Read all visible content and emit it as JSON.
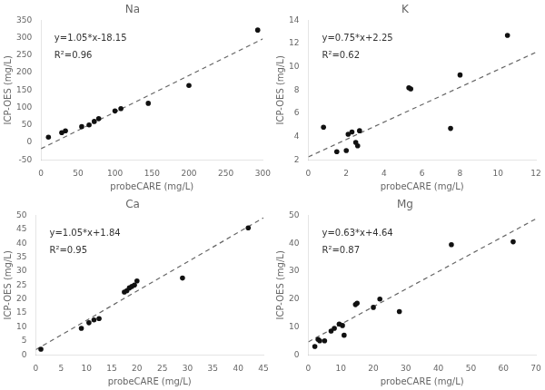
{
  "chart_data": [
    {
      "type": "scatter",
      "title": "Na",
      "xlabel": "probeCARE (mg/L)",
      "ylabel": "ICP-OES (mg/L)",
      "xlim": [
        0,
        300
      ],
      "ylim": [
        -50,
        350
      ],
      "xticks": [
        0,
        50,
        100,
        150,
        200,
        250,
        300
      ],
      "yticks": [
        -50,
        0,
        50,
        100,
        150,
        200,
        250,
        300,
        350
      ],
      "grid": false,
      "annotations": [
        "y=1.05*x-18.15",
        "R²=0.96"
      ],
      "series": [
        {
          "type": "scatter",
          "color": "#111111",
          "marker": "circle",
          "x": [
            10,
            28,
            33,
            55,
            65,
            72,
            78,
            100,
            108,
            145,
            200,
            293
          ],
          "values": [
            15,
            28,
            33,
            45,
            50,
            60,
            68,
            90,
            97,
            112,
            163,
            322
          ]
        },
        {
          "type": "line",
          "color": "#666666",
          "line_style": "dashed",
          "x": [
            0,
            300
          ],
          "values": [
            -18.15,
            296.85
          ]
        }
      ]
    },
    {
      "type": "scatter",
      "title": "K",
      "xlabel": "probeCARE (mg/L)",
      "ylabel": "ICP-OES (mg/L)",
      "xlim": [
        0,
        12
      ],
      "ylim": [
        2,
        14
      ],
      "xticks": [
        0,
        2,
        4,
        6,
        8,
        10,
        12
      ],
      "yticks": [
        2,
        4,
        6,
        8,
        10,
        12,
        14
      ],
      "grid": false,
      "annotations": [
        "y=0.75*x+2.25",
        "R²=0.62"
      ],
      "series": [
        {
          "type": "scatter",
          "color": "#111111",
          "marker": "circle",
          "x": [
            0.8,
            1.5,
            2.0,
            2.1,
            2.3,
            2.5,
            2.6,
            2.7,
            5.3,
            5.4,
            7.5,
            8.0,
            10.5
          ],
          "values": [
            4.8,
            2.7,
            2.8,
            4.2,
            4.4,
            3.5,
            3.2,
            4.5,
            8.2,
            8.1,
            4.7,
            9.3,
            12.7
          ]
        },
        {
          "type": "line",
          "color": "#666666",
          "line_style": "dashed",
          "x": [
            0,
            12
          ],
          "values": [
            2.25,
            11.25
          ]
        }
      ]
    },
    {
      "type": "scatter",
      "title": "Ca",
      "xlabel": "probeCARE (mg/L)",
      "ylabel": "ICP-OES (mg/L)",
      "xlim": [
        0,
        45
      ],
      "ylim": [
        0,
        50
      ],
      "xticks": [
        0,
        5,
        10,
        15,
        20,
        25,
        30,
        35,
        40,
        45
      ],
      "yticks": [
        0,
        5,
        10,
        15,
        20,
        25,
        30,
        35,
        40,
        45,
        50
      ],
      "grid": false,
      "annotations": [
        "y=1.05*x+1.84",
        "R²=0.95"
      ],
      "series": [
        {
          "type": "scatter",
          "color": "#111111",
          "marker": "circle",
          "x": [
            1.0,
            9.0,
            10.5,
            11.5,
            12.5,
            17.5,
            18.0,
            18.5,
            19.0,
            19.5,
            20.0,
            29.0,
            42.0
          ],
          "values": [
            2.0,
            9.5,
            11.5,
            12.5,
            13.0,
            22.5,
            23.0,
            24.0,
            24.5,
            25.0,
            26.5,
            27.5,
            45.5
          ]
        },
        {
          "type": "line",
          "color": "#666666",
          "line_style": "dashed",
          "x": [
            0,
            45
          ],
          "values": [
            1.84,
            49.09
          ]
        }
      ]
    },
    {
      "type": "scatter",
      "title": "Mg",
      "xlabel": "probeCARE (mg/L)",
      "ylabel": "ICP-OES (mg/L)",
      "xlim": [
        0,
        70
      ],
      "ylim": [
        0,
        50
      ],
      "xticks": [
        0,
        10,
        20,
        30,
        40,
        50,
        60,
        70
      ],
      "yticks": [
        0,
        10,
        20,
        30,
        40,
        50
      ],
      "grid": false,
      "annotations": [
        "y=0.63*x+4.64",
        "R²=0.87"
      ],
      "series": [
        {
          "type": "scatter",
          "color": "#111111",
          "marker": "circle",
          "x": [
            2.0,
            3.0,
            3.5,
            5.0,
            7.0,
            8.0,
            9.5,
            10.5,
            11.0,
            14.5,
            15.0,
            20.0,
            22.0,
            28.0,
            44.0,
            63.0
          ],
          "values": [
            3.0,
            5.5,
            5.0,
            5.0,
            8.5,
            9.5,
            11.0,
            10.5,
            7.0,
            18.0,
            18.5,
            17.0,
            20.0,
            15.5,
            39.5,
            40.5
          ]
        },
        {
          "type": "line",
          "color": "#666666",
          "line_style": "dashed",
          "x": [
            0,
            70
          ],
          "values": [
            4.64,
            48.74
          ]
        }
      ]
    }
  ]
}
